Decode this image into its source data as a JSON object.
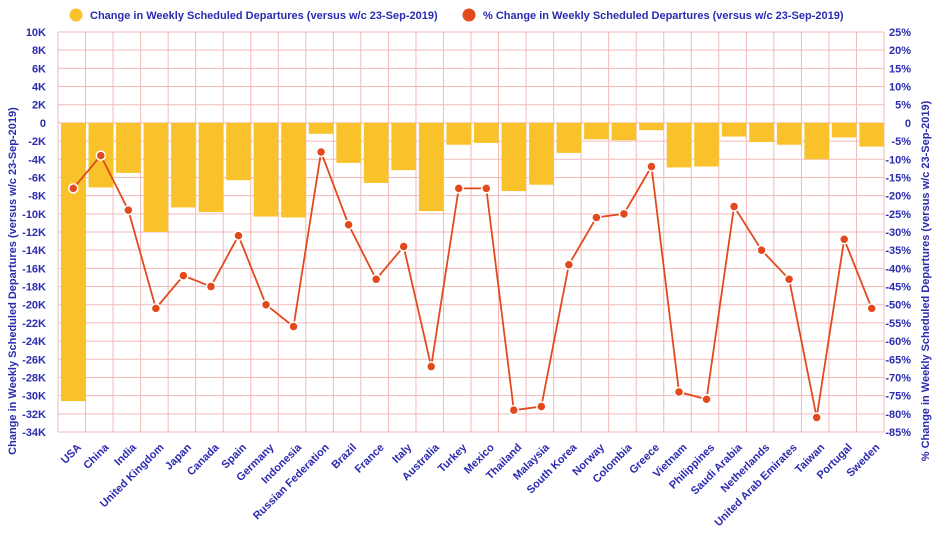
{
  "chart_data": {
    "type": "bar",
    "categories": [
      "USA",
      "China",
      "India",
      "United Kingdom",
      "Japan",
      "Canada",
      "Spain",
      "Germany",
      "Indonesia",
      "Russian Federation",
      "Brazil",
      "France",
      "Italy",
      "Australia",
      "Turkey",
      "Mexico",
      "Thailand",
      "Malaysia",
      "South Korea",
      "Norway",
      "Colombia",
      "Greece",
      "Vietnam",
      "Philippines",
      "Saudi Arabia",
      "Netherlands",
      "United Arab Emirates",
      "Taiwan",
      "Portugal",
      "Sweden"
    ],
    "series": [
      {
        "name": "Change in Weekly Scheduled Departures (versus w/c 23-Sep-2019)",
        "type": "bar",
        "axis": "left",
        "color": "#f9c22a",
        "values": [
          -30600,
          -7100,
          -5500,
          -12000,
          -9300,
          -9800,
          -6300,
          -10300,
          -10400,
          -1200,
          -4400,
          -6600,
          -5200,
          -9700,
          -2400,
          -2200,
          -7500,
          -6800,
          -3300,
          -1800,
          -1900,
          -800,
          -4900,
          -4800,
          -1500,
          -2100,
          -2400,
          -4000,
          -1600,
          -2600
        ]
      },
      {
        "name": "% Change in Weekly Scheduled Departures (versus w/c 23-Sep-2019)",
        "type": "line",
        "axis": "right",
        "color": "#e24a1e",
        "values": [
          -18,
          -9,
          -24,
          -51,
          -42,
          -45,
          -31,
          -50,
          -56,
          -8,
          -28,
          -43,
          -34,
          -67,
          -18,
          -18,
          -79,
          -78,
          -39,
          -26,
          -25,
          -12,
          -74,
          -76,
          -23,
          -35,
          -43,
          -81,
          -32,
          -51
        ]
      }
    ],
    "y_left": {
      "label": "Change in Weekly Scheduled Departures (versus w/c 23-Sep-2019)",
      "range": [
        -34000,
        10000
      ],
      "ticks": [
        "10K",
        "8K",
        "6K",
        "4K",
        "2K",
        "0",
        "-2K",
        "-4K",
        "-6K",
        "-8K",
        "-10K",
        "-12K",
        "-14K",
        "-16K",
        "-18K",
        "-20K",
        "-22K",
        "-24K",
        "-26K",
        "-28K",
        "-30K",
        "-32K",
        "-34K"
      ]
    },
    "y_right": {
      "label": "% Change in Weekly Scheduled Departures (versus w/c 23-Sep-2019)",
      "range": [
        -85,
        25
      ],
      "ticks": [
        "25%",
        "20%",
        "15%",
        "10%",
        "5%",
        "0",
        "-5%",
        "-10%",
        "-15%",
        "-20%",
        "-25%",
        "-30%",
        "-35%",
        "-40%",
        "-45%",
        "-50%",
        "-55%",
        "-60%",
        "-65%",
        "-70%",
        "-75%",
        "-80%",
        "-85%"
      ]
    },
    "grid": true,
    "legend": "top-center"
  }
}
